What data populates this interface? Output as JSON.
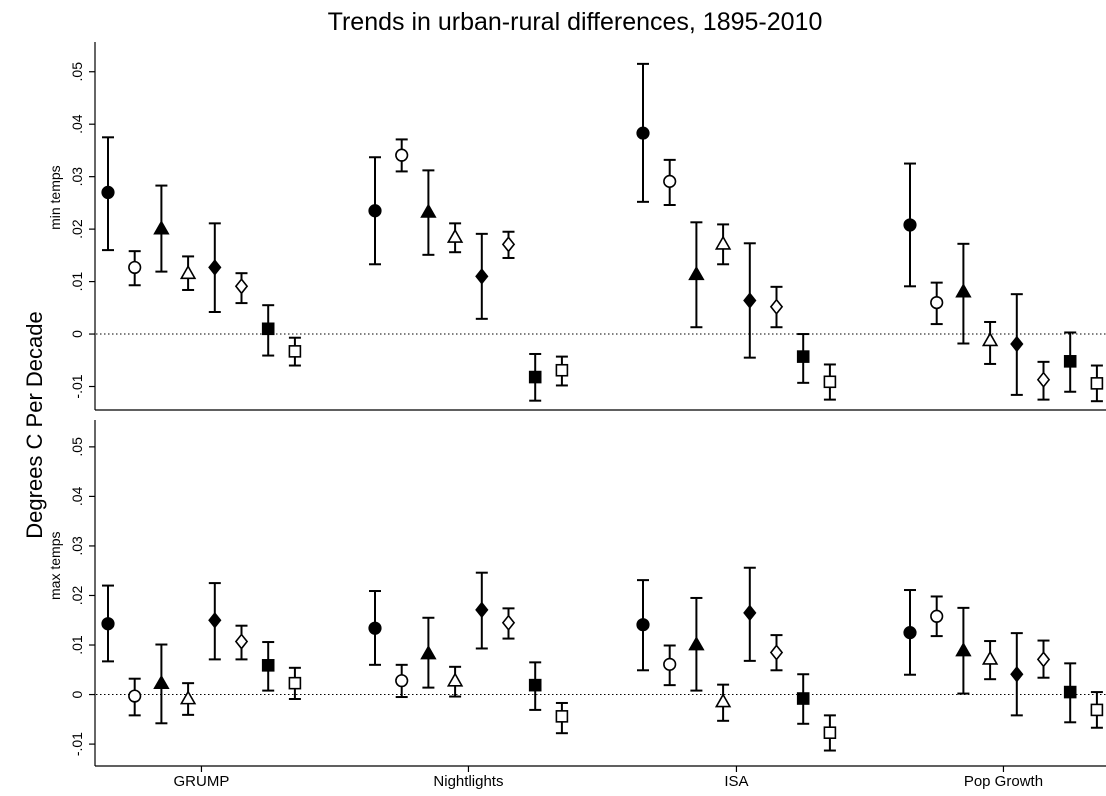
{
  "chart_data": {
    "type": "errorbar",
    "title": "Trends in urban-rural differences, 1895-2010",
    "ylabel": "Degrees C Per Decade",
    "categories": [
      "GRUMP",
      "Nightlights",
      "ISA",
      "Pop Growth"
    ],
    "markers": [
      "circle-filled",
      "circle-open",
      "triangle-filled",
      "triangle-open",
      "diamond-filled",
      "diamond-open",
      "square-filled",
      "square-open"
    ],
    "ylim": [
      -0.012,
      0.053
    ],
    "y_ticks": [
      -0.01,
      0,
      0.01,
      0.02,
      0.03,
      0.04,
      0.05
    ],
    "y_tick_labels": [
      "-.01",
      "0",
      ".01",
      ".02",
      ".03",
      ".04",
      ".05"
    ],
    "reference_line": 0,
    "panels": [
      {
        "label": "min temps",
        "groups": [
          {
            "category": "GRUMP",
            "points": [
              {
                "value": 0.027,
                "low": 0.016,
                "high": 0.0375
              },
              {
                "value": 0.0127,
                "low": 0.0093,
                "high": 0.0158
              },
              {
                "value": 0.0201,
                "low": 0.0119,
                "high": 0.0283
              },
              {
                "value": 0.0116,
                "low": 0.0084,
                "high": 0.0148
              },
              {
                "value": 0.0127,
                "low": 0.0042,
                "high": 0.0211
              },
              {
                "value": 0.0091,
                "low": 0.0059,
                "high": 0.0116
              },
              {
                "value": 0.001,
                "low": -0.0041,
                "high": 0.0055
              },
              {
                "value": -0.0033,
                "low": -0.006,
                "high": -0.0007
              }
            ]
          },
          {
            "category": "Nightlights",
            "points": [
              {
                "value": 0.0235,
                "low": 0.0133,
                "high": 0.0337
              },
              {
                "value": 0.0341,
                "low": 0.031,
                "high": 0.0371
              },
              {
                "value": 0.0233,
                "low": 0.0151,
                "high": 0.0312
              },
              {
                "value": 0.0185,
                "low": 0.0156,
                "high": 0.0211
              },
              {
                "value": 0.011,
                "low": 0.0029,
                "high": 0.0191
              },
              {
                "value": 0.0171,
                "low": 0.0145,
                "high": 0.0195
              },
              {
                "value": -0.0082,
                "low": -0.0127,
                "high": -0.0038
              },
              {
                "value": -0.0069,
                "low": -0.0098,
                "high": -0.0043
              }
            ]
          },
          {
            "category": "ISA",
            "points": [
              {
                "value": 0.0383,
                "low": 0.0252,
                "high": 0.0515
              },
              {
                "value": 0.0291,
                "low": 0.0246,
                "high": 0.0332
              },
              {
                "value": 0.0114,
                "low": 0.0013,
                "high": 0.0213
              },
              {
                "value": 0.0172,
                "low": 0.0133,
                "high": 0.0209
              },
              {
                "value": 0.0064,
                "low": -0.0045,
                "high": 0.0173
              },
              {
                "value": 0.0052,
                "low": 0.0013,
                "high": 0.009
              },
              {
                "value": -0.0043,
                "low": -0.0093,
                "high": 0
              },
              {
                "value": -0.0091,
                "low": -0.0125,
                "high": -0.0058
              }
            ]
          },
          {
            "category": "Pop Growth",
            "points": [
              {
                "value": 0.0208,
                "low": 0.0091,
                "high": 0.0325
              },
              {
                "value": 0.006,
                "low": 0.0019,
                "high": 0.0098
              },
              {
                "value": 0.0081,
                "low": -0.0018,
                "high": 0.0172
              },
              {
                "value": -0.0012,
                "low": -0.0057,
                "high": 0.0023
              },
              {
                "value": -0.0019,
                "low": -0.0116,
                "high": 0.0076
              },
              {
                "value": -0.0087,
                "low": -0.0125,
                "high": -0.0053
              },
              {
                "value": -0.0052,
                "low": -0.011,
                "high": 0.0003
              },
              {
                "value": -0.0094,
                "low": -0.0128,
                "high": -0.006
              }
            ]
          }
        ]
      },
      {
        "label": "max temps",
        "groups": [
          {
            "category": "GRUMP",
            "points": [
              {
                "value": 0.0143,
                "low": 0.0067,
                "high": 0.022
              },
              {
                "value": -0.0003,
                "low": -0.0042,
                "high": 0.0032
              },
              {
                "value": 0.0023,
                "low": -0.0058,
                "high": 0.0101
              },
              {
                "value": -0.0008,
                "low": -0.0041,
                "high": 0.0023
              },
              {
                "value": 0.015,
                "low": 0.0071,
                "high": 0.0225
              },
              {
                "value": 0.0107,
                "low": 0.0071,
                "high": 0.0139
              },
              {
                "value": 0.0059,
                "low": 0.0008,
                "high": 0.0106
              },
              {
                "value": 0.0023,
                "low": -0.0009,
                "high": 0.0054
              }
            ]
          },
          {
            "category": "Nightlights",
            "points": [
              {
                "value": 0.0134,
                "low": 0.006,
                "high": 0.0209
              },
              {
                "value": 0.0028,
                "low": -0.0005,
                "high": 0.006
              },
              {
                "value": 0.0083,
                "low": 0.0014,
                "high": 0.0155
              },
              {
                "value": 0.0028,
                "low": -0.0004,
                "high": 0.0056
              },
              {
                "value": 0.0171,
                "low": 0.0093,
                "high": 0.0246
              },
              {
                "value": 0.0145,
                "low": 0.0113,
                "high": 0.0174
              },
              {
                "value": 0.0019,
                "low": -0.0031,
                "high": 0.0065
              },
              {
                "value": -0.0044,
                "low": -0.0078,
                "high": -0.0017
              }
            ]
          },
          {
            "category": "ISA",
            "points": [
              {
                "value": 0.0141,
                "low": 0.0049,
                "high": 0.0231
              },
              {
                "value": 0.0061,
                "low": 0.0019,
                "high": 0.0099
              },
              {
                "value": 0.0101,
                "low": 0.0008,
                "high": 0.0195
              },
              {
                "value": -0.0014,
                "low": -0.0053,
                "high": 0.002
              },
              {
                "value": 0.0165,
                "low": 0.0068,
                "high": 0.0256
              },
              {
                "value": 0.0085,
                "low": 0.0049,
                "high": 0.012
              },
              {
                "value": -0.0008,
                "low": -0.0059,
                "high": 0.0041
              },
              {
                "value": -0.0077,
                "low": -0.0113,
                "high": -0.0042
              }
            ]
          },
          {
            "category": "Pop Growth",
            "points": [
              {
                "value": 0.0125,
                "low": 0.004,
                "high": 0.0211
              },
              {
                "value": 0.0158,
                "low": 0.0118,
                "high": 0.0198
              },
              {
                "value": 0.0089,
                "low": 0.0002,
                "high": 0.0175
              },
              {
                "value": 0.0072,
                "low": 0.0031,
                "high": 0.0108
              },
              {
                "value": 0.0041,
                "low": -0.0042,
                "high": 0.0124
              },
              {
                "value": 0.0071,
                "low": 0.0034,
                "high": 0.0109
              },
              {
                "value": 0.0005,
                "low": -0.0056,
                "high": 0.0063
              },
              {
                "value": -0.0031,
                "low": -0.0067,
                "high": 0.0005
              }
            ]
          }
        ]
      }
    ]
  }
}
